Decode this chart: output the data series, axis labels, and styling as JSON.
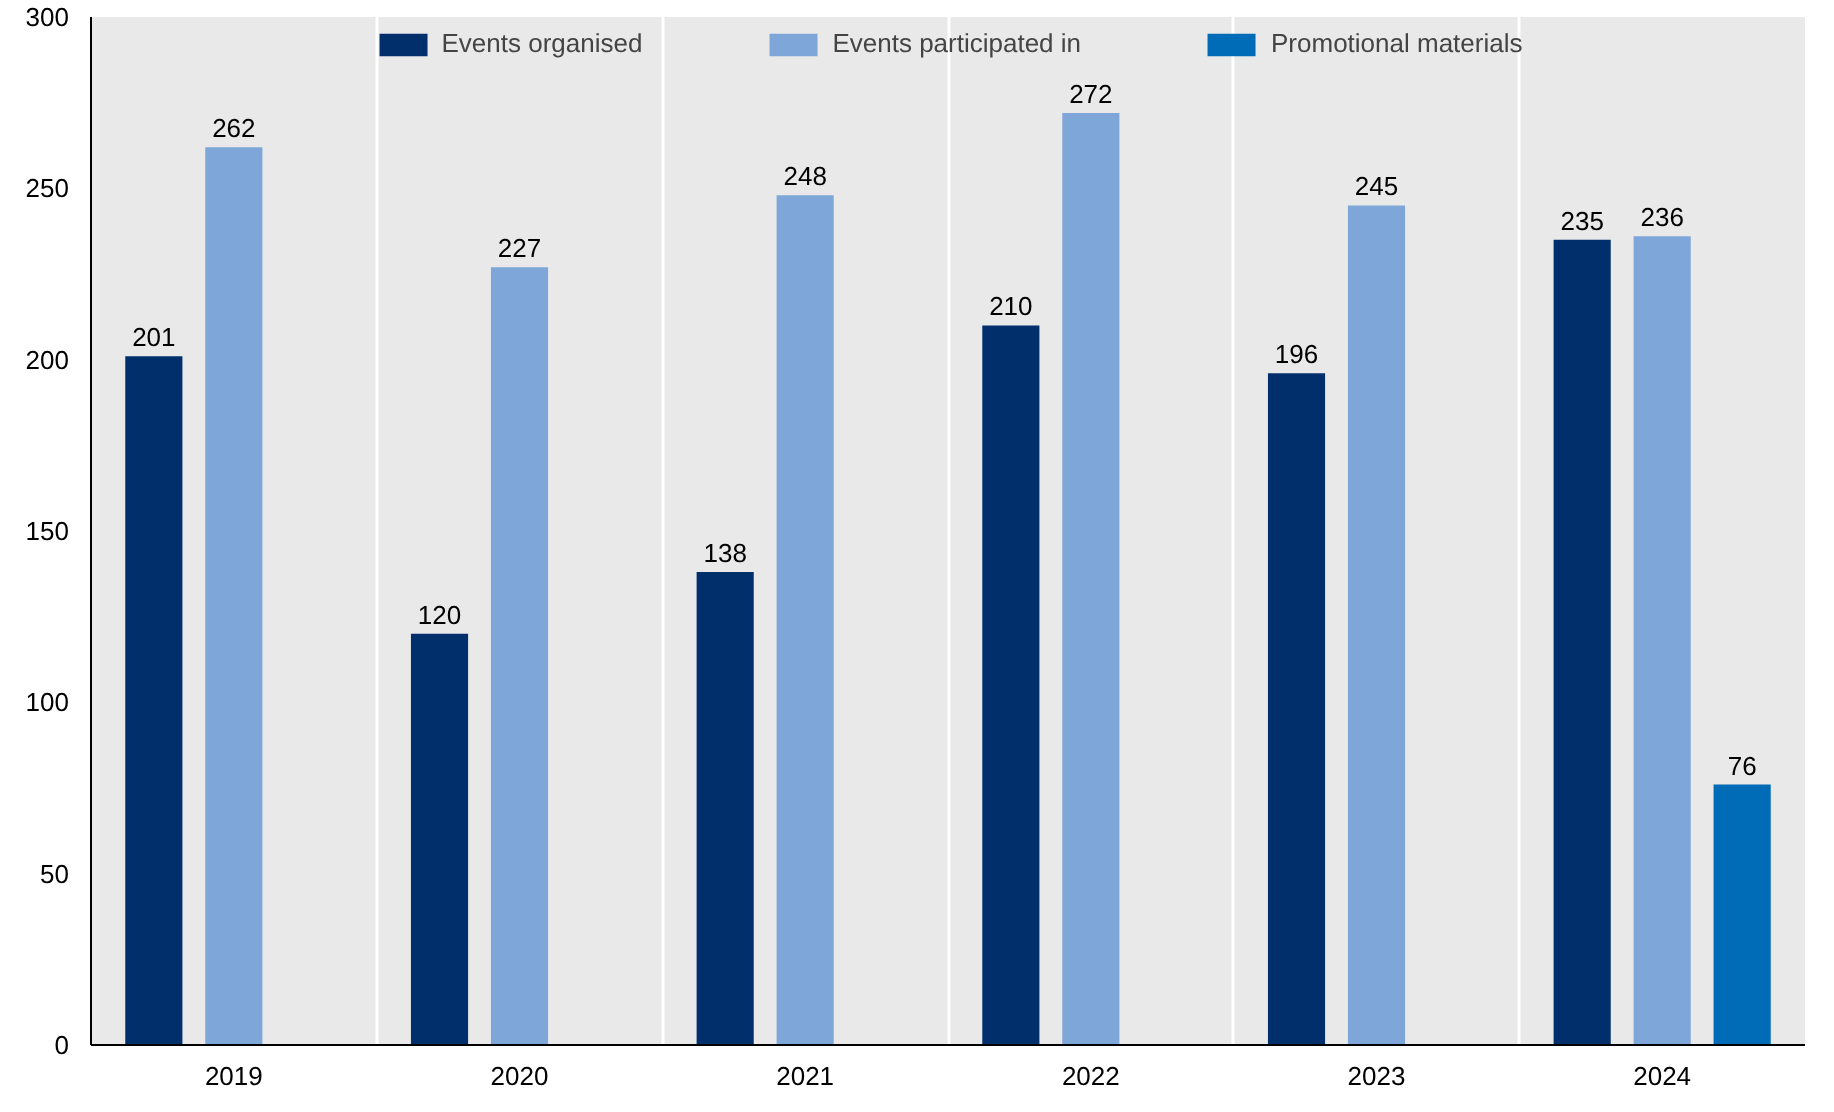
{
  "chart_data": {
    "type": "bar",
    "categories": [
      "2019",
      "2020",
      "2021",
      "2022",
      "2023",
      "2024"
    ],
    "series": [
      {
        "name": "Events organised",
        "color": "#002f6c",
        "values": [
          201,
          120,
          138,
          210,
          196,
          235
        ]
      },
      {
        "name": "Events participated in",
        "color": "#7fa6d9",
        "values": [
          262,
          227,
          248,
          272,
          245,
          236
        ]
      },
      {
        "name": "Promotional materials",
        "color": "#006bb6",
        "values": [
          null,
          null,
          null,
          null,
          null,
          76
        ]
      }
    ],
    "ylim": [
      0,
      300
    ],
    "yticks": [
      0,
      50,
      100,
      150,
      200,
      250,
      300
    ],
    "data_labels": true,
    "grid": "x",
    "legend": "top"
  }
}
